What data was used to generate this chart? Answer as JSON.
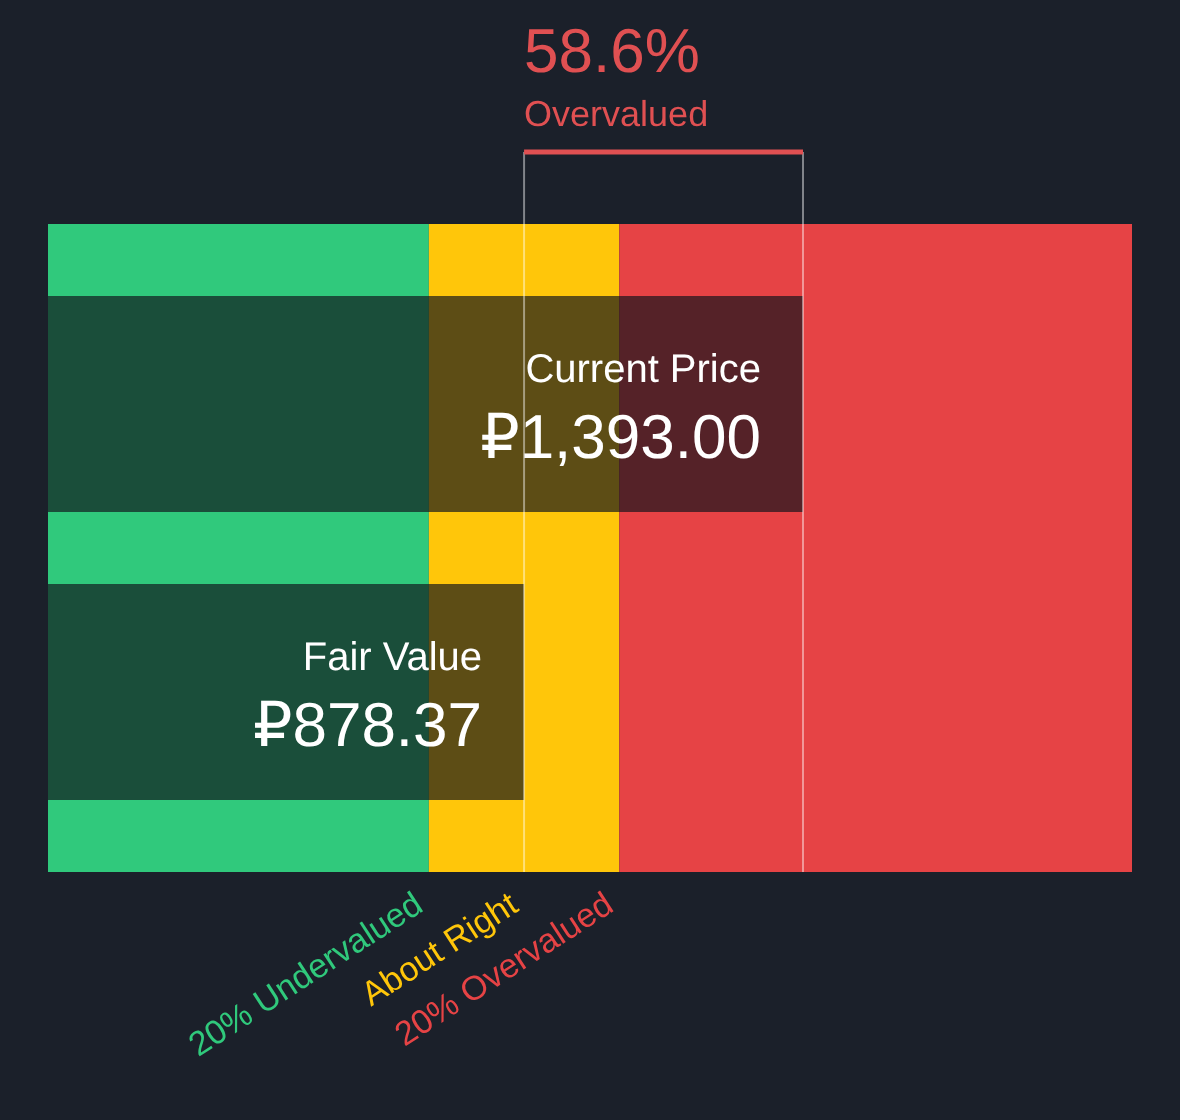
{
  "chart_data": {
    "type": "bar",
    "orientation": "horizontal",
    "categories": [
      "Current Price",
      "Fair Value"
    ],
    "values": [
      1393.0,
      878.37
    ],
    "value_labels": [
      "₽1,393.00",
      "₽878.37"
    ],
    "color": "#10131a",
    "xlim": [
      0,
      2000
    ],
    "bands": [
      {
        "axis": "x",
        "from": 0,
        "to": 702.7,
        "label": "20% Undervalued",
        "color": "#30c97c"
      },
      {
        "axis": "x",
        "from": 702.7,
        "to": 1054.04,
        "label": "About Right",
        "color": "#ffc60a"
      },
      {
        "axis": "x",
        "from": 1054.04,
        "to": 2000,
        "label": "20% Overvalued",
        "color": "#e64345"
      }
    ],
    "ref_lines": [
      {
        "axis": "x",
        "value": 878.37,
        "color": "#ffffff"
      },
      {
        "axis": "x",
        "value": 1393.0,
        "color": "#ffffff"
      }
    ],
    "annotations": [
      "58.6%",
      "Overvalued"
    ]
  }
}
